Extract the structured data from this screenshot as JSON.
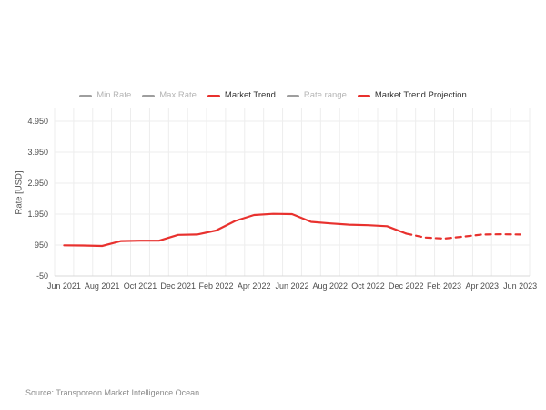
{
  "colors": {
    "accent_red": "#e8312e",
    "muted_gray": "#9e9e9e",
    "grid": "#ededed",
    "axis_line": "#d8d8d8",
    "tick_text": "#4d4d4d"
  },
  "legend": {
    "items": [
      {
        "id": "min-rate",
        "label": "Min Rate",
        "color": "#9e9e9e",
        "active": false
      },
      {
        "id": "max-rate",
        "label": "Max Rate",
        "color": "#9e9e9e",
        "active": false
      },
      {
        "id": "market-trend",
        "label": "Market Trend",
        "color": "#e8312e",
        "active": true
      },
      {
        "id": "rate-range",
        "label": "Rate range",
        "color": "#9e9e9e",
        "active": false
      },
      {
        "id": "market-trend-projection",
        "label": "Market Trend Projection",
        "color": "#e8312e",
        "active": true
      }
    ]
  },
  "yaxis": {
    "title": "Rate [USD]",
    "ticks": [
      {
        "label": "4.950",
        "value": 4950
      },
      {
        "label": "3.950",
        "value": 3950
      },
      {
        "label": "2.950",
        "value": 2950
      },
      {
        "label": "1.950",
        "value": 1950
      },
      {
        "label": "950",
        "value": 950
      },
      {
        "label": "-50",
        "value": -50
      }
    ]
  },
  "xaxis": {
    "labels": [
      "Jun 2021",
      "Aug 2021",
      "Oct 2021",
      "Dec 2021",
      "Feb 2022",
      "Apr 2022",
      "Jun 2022",
      "Aug 2022",
      "Oct 2022",
      "Dec 2022",
      "Feb 2023",
      "Apr 2023",
      "Jun 2023"
    ]
  },
  "source": {
    "text": "Source: Transporeon Market Intelligence Ocean"
  },
  "chart_data": {
    "type": "line",
    "title": "",
    "xlabel": "",
    "ylabel": "Rate [USD]",
    "ylim": [
      -50,
      4950
    ],
    "grid": true,
    "legend_position": "top",
    "x": [
      "Jun 2021",
      "Jul 2021",
      "Aug 2021",
      "Sep 2021",
      "Oct 2021",
      "Nov 2021",
      "Dec 2021",
      "Jan 2022",
      "Feb 2022",
      "Mar 2022",
      "Apr 2022",
      "May 2022",
      "Jun 2022",
      "Jul 2022",
      "Aug 2022",
      "Sep 2022",
      "Oct 2022",
      "Nov 2022",
      "Dec 2022",
      "Jan 2023",
      "Feb 2023",
      "Mar 2023",
      "Apr 2023",
      "May 2023",
      "Jun 2023"
    ],
    "series": [
      {
        "name": "Market Trend",
        "color": "#e8312e",
        "style": "solid",
        "start_index": 0,
        "values": [
          940,
          935,
          920,
          1080,
          1090,
          1090,
          1280,
          1290,
          1420,
          1730,
          1920,
          1960,
          1950,
          1700,
          1650,
          1610,
          1590,
          1560,
          1320
        ]
      },
      {
        "name": "Market Trend Projection",
        "color": "#e8312e",
        "style": "dashed",
        "start_index": 18,
        "values": [
          1320,
          1190,
          1160,
          1220,
          1290,
          1300,
          1290
        ]
      }
    ]
  }
}
